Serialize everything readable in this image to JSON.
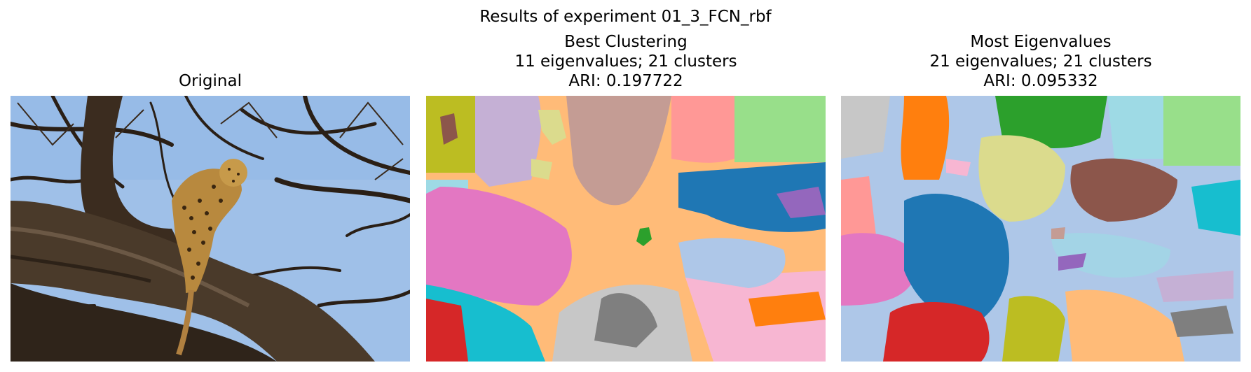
{
  "figure": {
    "suptitle": "Results of experiment 01_3_FCN_rbf"
  },
  "panels": [
    {
      "title_lines": [
        "Original"
      ]
    },
    {
      "title_lines": [
        "Best Clustering",
        "11 eigenvalues; 21 clusters",
        "ARI: 0.197722"
      ]
    },
    {
      "title_lines": [
        "Most Eigenvalues",
        "21 eigenvalues; 21 clusters",
        "ARI: 0.095332"
      ]
    }
  ],
  "colors": {
    "tab_blue": "#1f77b4",
    "tab_orange": "#ff7f0e",
    "tab_green": "#2ca02c",
    "tab_red": "#d62728",
    "tab_purple": "#9467bd",
    "tab_brown": "#8c564b",
    "tab_pink": "#e377c2",
    "tab_gray": "#7f7f7f",
    "tab_olive": "#bcbd22",
    "tab_cyan": "#17becf",
    "light_blue": "#aec7e8",
    "light_orange": "#ffbb78",
    "light_green": "#98df8a",
    "light_red": "#ff9896",
    "light_purple": "#c5b0d5",
    "light_brown": "#c49c94",
    "light_pink": "#f7b6d2",
    "light_gray": "#c7c7c7",
    "light_olive": "#dbdb8d",
    "light_cyan": "#9edae5",
    "sky": "#a9c4e6"
  }
}
